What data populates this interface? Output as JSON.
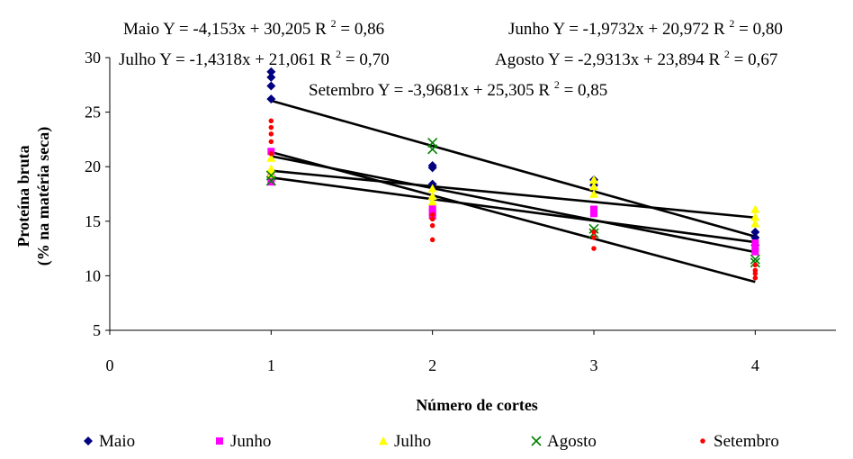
{
  "chart_data": {
    "type": "scatter",
    "xlabel": "Número de cortes",
    "ylabel_line1": "Proteína bruta",
    "ylabel_line2": "(% na matéria seca)",
    "xlim": [
      0,
      4.5
    ],
    "ylim": [
      5,
      30
    ],
    "xticks": [
      0,
      1,
      2,
      3,
      4
    ],
    "yticks": [
      5,
      10,
      15,
      20,
      25,
      30
    ],
    "grid": false,
    "legend_position": "bottom",
    "series": [
      {
        "name": "Maio",
        "marker": "diamond",
        "color": "#000080",
        "points": [
          [
            1,
            28.7
          ],
          [
            1,
            28.2
          ],
          [
            1,
            27.4
          ],
          [
            1,
            26.2
          ],
          [
            2,
            20.1
          ],
          [
            2,
            19.9
          ],
          [
            2,
            18.4
          ],
          [
            3,
            18.8
          ],
          [
            3,
            18.3
          ],
          [
            4,
            14.0
          ],
          [
            4,
            13.5
          ],
          [
            4,
            12.8
          ]
        ],
        "equation_text": "Maio Y = -4,153x + 30,205 R",
        "r2_text": "= 0,86",
        "slope": -4.153,
        "intercept": 30.205
      },
      {
        "name": "Junho",
        "marker": "square",
        "color": "#ff00ff",
        "points": [
          [
            1,
            21.4
          ],
          [
            1,
            19.0
          ],
          [
            1,
            18.6
          ],
          [
            2,
            16.2
          ],
          [
            2,
            15.8
          ],
          [
            2,
            15.5
          ],
          [
            3,
            16.1
          ],
          [
            3,
            15.7
          ],
          [
            4,
            13.0
          ],
          [
            4,
            12.5
          ],
          [
            4,
            12.2
          ]
        ],
        "equation_text": "Junho Y = -1,9732x + 20,972 R",
        "r2_text": "= 0,80",
        "slope": -1.9732,
        "intercept": 20.972
      },
      {
        "name": "Julho",
        "marker": "triangle",
        "color": "#ffff00",
        "points": [
          [
            1,
            20.8
          ],
          [
            1,
            19.8
          ],
          [
            1,
            19.3
          ],
          [
            2,
            18.0
          ],
          [
            2,
            17.3
          ],
          [
            2,
            16.8
          ],
          [
            3,
            18.8
          ],
          [
            3,
            18.2
          ],
          [
            3,
            17.5
          ],
          [
            4,
            16.1
          ],
          [
            4,
            15.4
          ],
          [
            4,
            14.8
          ]
        ],
        "equation_text": "Julho Y = -1,4318x + 21,061 R",
        "r2_text": "= 0,70",
        "slope": -1.4318,
        "intercept": 21.061
      },
      {
        "name": "Agosto",
        "marker": "x",
        "color": "#008000",
        "points": [
          [
            1,
            19.2
          ],
          [
            1,
            18.7
          ],
          [
            2,
            22.2
          ],
          [
            2,
            21.6
          ],
          [
            3,
            14.3
          ],
          [
            3,
            13.9
          ],
          [
            4,
            11.5
          ],
          [
            4,
            11.2
          ]
        ],
        "equation_text": "Agosto Y = -2,9313x + 23,894 R",
        "r2_text": "= 0,67",
        "slope": -2.9313,
        "intercept": 23.894
      },
      {
        "name": "Setembro",
        "marker": "circle",
        "color": "#ff0000",
        "points": [
          [
            1,
            24.2
          ],
          [
            1,
            23.6
          ],
          [
            1,
            23.0
          ],
          [
            1,
            22.3
          ],
          [
            1,
            21.2
          ],
          [
            2,
            15.6
          ],
          [
            2,
            15.2
          ],
          [
            2,
            14.6
          ],
          [
            2,
            13.3
          ],
          [
            3,
            14.0
          ],
          [
            3,
            13.5
          ],
          [
            3,
            12.5
          ],
          [
            4,
            11.0
          ],
          [
            4,
            10.5
          ],
          [
            4,
            10.2
          ],
          [
            4,
            9.8
          ]
        ],
        "equation_text": "Setembro Y = -3,9681x + 25,305 R",
        "r2_text": "= 0,85",
        "slope": -3.9681,
        "intercept": 25.305
      }
    ]
  }
}
